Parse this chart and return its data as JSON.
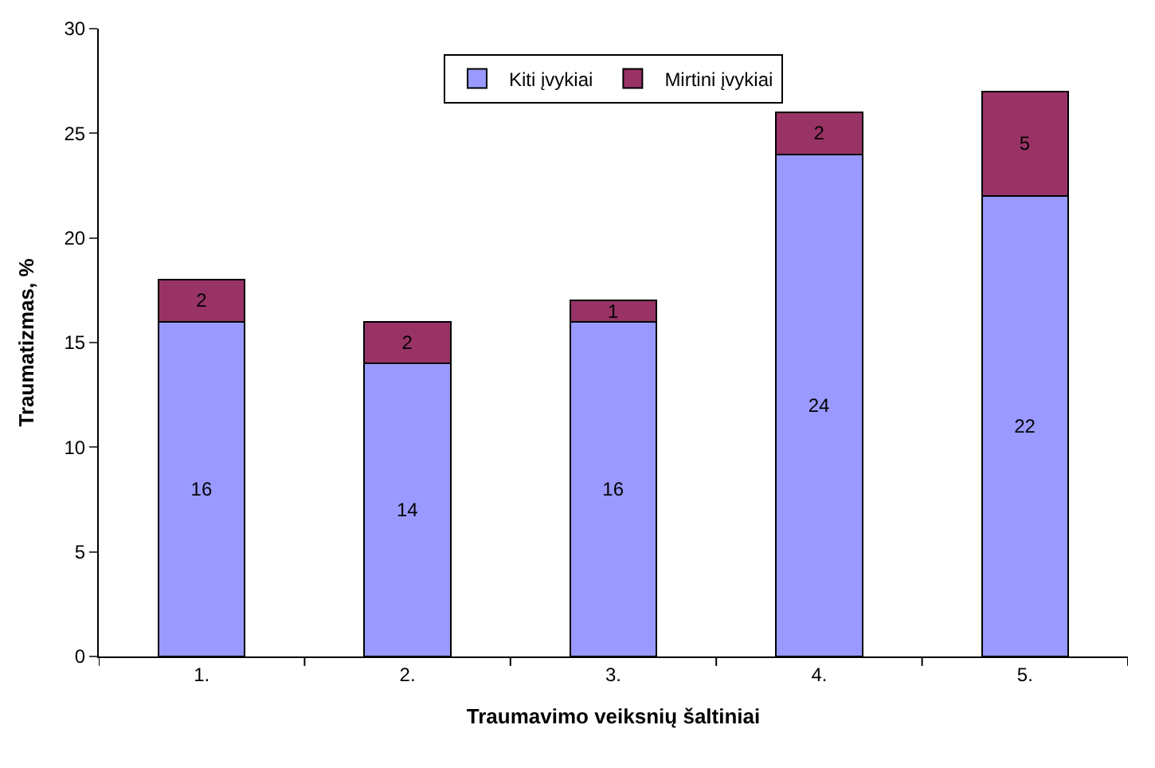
{
  "chart_data": {
    "type": "bar",
    "stacked": true,
    "xlabel": "Traumavimo veiksnių šaltiniai",
    "ylabel": "Traumatizmas, %",
    "categories": [
      "1.",
      "2.",
      "3.",
      "4.",
      "5."
    ],
    "series": [
      {
        "name": "Kiti įvykiai",
        "color": "#9999ff",
        "values": [
          16,
          14,
          16,
          24,
          22
        ]
      },
      {
        "name": "Mirtini įvykiai",
        "color": "#993366",
        "values": [
          2,
          2,
          1,
          2,
          5
        ]
      }
    ],
    "ylim": [
      0,
      30
    ],
    "yticks": [
      0,
      5,
      10,
      15,
      20,
      25,
      30
    ],
    "grid": false,
    "legend": "top",
    "data_labels": true
  }
}
